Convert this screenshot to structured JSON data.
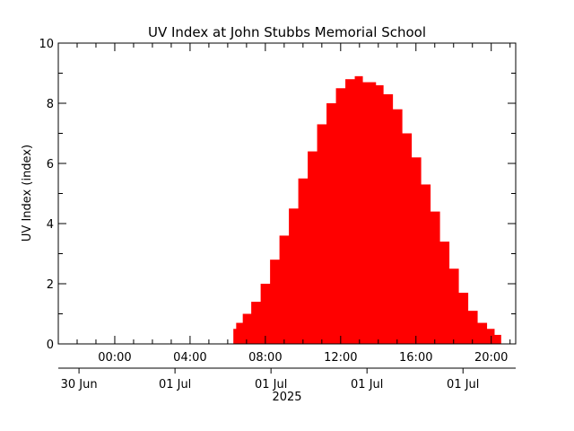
{
  "chart_data": {
    "type": "area",
    "title": "UV Index at John Stubbs Memorial School",
    "ylabel": "UV Index (index)",
    "ylim": [
      0,
      10
    ],
    "y_ticks": [
      0,
      2,
      4,
      6,
      8,
      10
    ],
    "xlim_hours": [
      -3.0,
      21.3
    ],
    "x_time_ticks": [
      {
        "hour": 0,
        "label": "00:00"
      },
      {
        "hour": 4,
        "label": "04:00"
      },
      {
        "hour": 8,
        "label": "08:00"
      },
      {
        "hour": 12,
        "label": "12:00"
      },
      {
        "hour": 16,
        "label": "16:00"
      },
      {
        "hour": 20,
        "label": "20:00"
      }
    ],
    "x_date_ticks": [
      {
        "hour": -1.9,
        "label": "30 Jun"
      },
      {
        "hour": 3.2,
        "label": "01 Jul"
      },
      {
        "hour": 8.3,
        "label": "01 Jul"
      },
      {
        "hour": 13.4,
        "label": "01 Jul"
      },
      {
        "hour": 18.5,
        "label": "01 Jul"
      }
    ],
    "year_label": "2025",
    "series": [
      {
        "color": "#ff0000",
        "x": [
          6.3,
          6.6,
          7.0,
          7.5,
          8.0,
          8.5,
          9.0,
          9.5,
          10.0,
          10.5,
          11.0,
          11.5,
          12.0,
          12.5,
          13.0,
          13.3,
          13.7,
          14.0,
          14.5,
          15.0,
          15.5,
          16.0,
          16.5,
          17.0,
          17.5,
          18.0,
          18.5,
          19.0,
          19.5,
          20.0,
          20.3,
          20.5
        ],
        "y": [
          0.5,
          0.7,
          1.0,
          1.4,
          2.0,
          2.8,
          3.6,
          4.5,
          5.5,
          6.4,
          7.3,
          8.0,
          8.5,
          8.8,
          8.9,
          8.7,
          8.7,
          8.6,
          8.3,
          7.8,
          7.0,
          6.2,
          5.3,
          4.4,
          3.4,
          2.5,
          1.7,
          1.1,
          0.7,
          0.5,
          0.3,
          0.3
        ]
      }
    ]
  }
}
